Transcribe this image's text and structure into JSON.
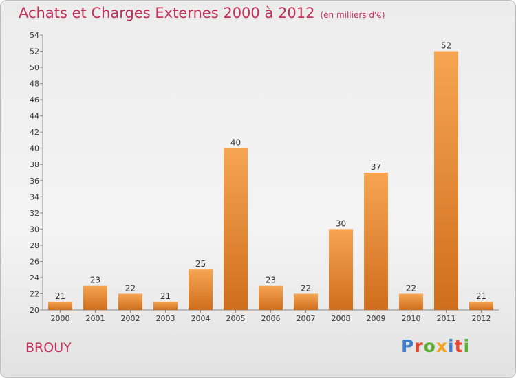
{
  "header": {
    "title": "Achats et Charges Externes 2000 à 2012",
    "subtitle": "(en milliers d'€)"
  },
  "footer": {
    "commune": "BROUY",
    "logo": [
      "P",
      "r",
      "o",
      "x",
      "i",
      "t",
      "i"
    ]
  },
  "colors": {
    "title": "#c0305a",
    "bar_light": "#f6a552",
    "bar_dark": "#cf6e1c",
    "logo_letters": [
      "#3f7fd0",
      "#e8452c",
      "#5bb033",
      "#f3a21e",
      "#3f7fd0",
      "#e8452c",
      "#5bb033"
    ]
  },
  "chart_data": {
    "type": "bar",
    "title": "Achats et Charges Externes 2000 à 2012",
    "subtitle": "(en milliers d'€)",
    "categories": [
      "2000",
      "2001",
      "2002",
      "2003",
      "2004",
      "2005",
      "2006",
      "2007",
      "2008",
      "2009",
      "2010",
      "2011",
      "2012"
    ],
    "values": [
      21,
      23,
      22,
      21,
      25,
      40,
      23,
      22,
      30,
      37,
      22,
      52,
      21
    ],
    "ylim": [
      20,
      54
    ],
    "ytick_step": 2,
    "grid": false,
    "data_labels": true
  }
}
